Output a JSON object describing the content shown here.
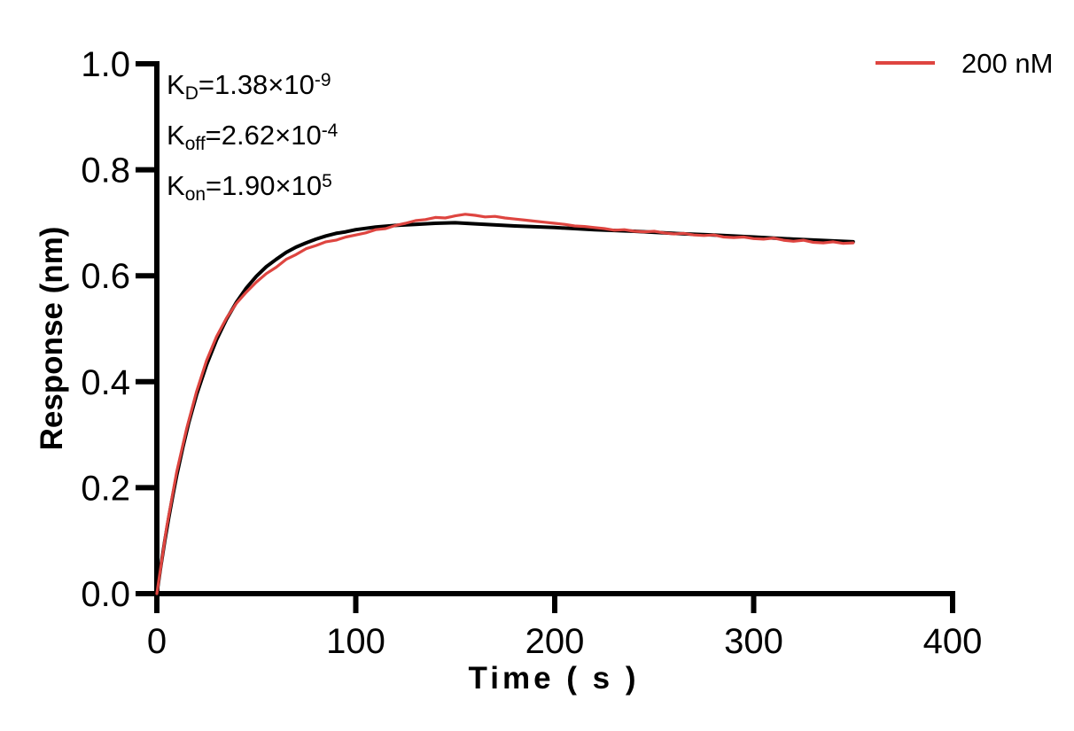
{
  "kinetics": [
    {
      "base": "K",
      "sub": "D",
      "body": "=1.38×10",
      "sup": "-9"
    },
    {
      "base": "K",
      "sub": "off",
      "body": "=2.62×10",
      "sup": "-4"
    },
    {
      "base": "K",
      "sub": "on",
      "body": "=1.90×10",
      "sup": "5"
    }
  ],
  "legend": {
    "position": "top-right",
    "items": [
      {
        "label": "200 nM",
        "color": "#de4540"
      }
    ]
  },
  "colors": {
    "axis": "#000000",
    "fit_line": "#000000",
    "data_line": "#de4540",
    "background": "#ffffff"
  },
  "chart_data": {
    "type": "line",
    "title": "",
    "xlabel": "Time ( s )",
    "ylabel": "Response (nm)",
    "xlim": [
      0,
      400
    ],
    "ylim": [
      0,
      1.0
    ],
    "xticks": [
      0,
      100,
      200,
      300,
      400
    ],
    "xtick_labels": [
      "0",
      "100",
      "200",
      "300",
      "400"
    ],
    "yticks": [
      0.0,
      0.2,
      0.4,
      0.6,
      0.8,
      1.0
    ],
    "ytick_labels": [
      "0.0",
      "0.2",
      "0.4",
      "0.6",
      "0.8",
      "1.0"
    ],
    "grid": false,
    "legend_position": "top-right",
    "series": [
      {
        "name": "fit",
        "color": "#000000",
        "stroke_width": 4,
        "x": [
          0,
          2,
          4,
          6,
          8,
          10,
          13,
          16,
          20,
          25,
          30,
          35,
          40,
          45,
          50,
          55,
          60,
          65,
          70,
          75,
          80,
          85,
          90,
          95,
          100,
          110,
          120,
          130,
          140,
          150,
          160,
          180,
          200,
          220,
          240,
          260,
          280,
          300,
          320,
          350
        ],
        "y": [
          0,
          0.052,
          0.1,
          0.144,
          0.185,
          0.223,
          0.275,
          0.322,
          0.376,
          0.432,
          0.479,
          0.518,
          0.55,
          0.577,
          0.599,
          0.617,
          0.631,
          0.644,
          0.654,
          0.662,
          0.669,
          0.675,
          0.68,
          0.683,
          0.687,
          0.692,
          0.695,
          0.697,
          0.699,
          0.7,
          0.698,
          0.694,
          0.691,
          0.687,
          0.684,
          0.68,
          0.677,
          0.673,
          0.669,
          0.664
        ]
      },
      {
        "name": "200 nM",
        "color": "#de4540",
        "stroke_width": 3.2,
        "x": [
          0,
          5,
          10,
          15,
          20,
          25,
          30,
          35,
          40,
          45,
          50,
          55,
          60,
          65,
          70,
          75,
          80,
          85,
          90,
          95,
          100,
          105,
          110,
          115,
          120,
          125,
          130,
          135,
          140,
          145,
          150,
          155,
          160,
          165,
          170,
          175,
          180,
          185,
          190,
          195,
          200,
          205,
          210,
          215,
          220,
          225,
          230,
          235,
          240,
          245,
          250,
          255,
          260,
          265,
          270,
          275,
          280,
          285,
          290,
          295,
          300,
          305,
          310,
          315,
          320,
          325,
          330,
          335,
          340,
          345,
          350
        ],
        "y": [
          0.0,
          0.127,
          0.23,
          0.312,
          0.382,
          0.44,
          0.485,
          0.52,
          0.548,
          0.569,
          0.588,
          0.604,
          0.616,
          0.631,
          0.64,
          0.651,
          0.657,
          0.664,
          0.667,
          0.673,
          0.677,
          0.681,
          0.687,
          0.689,
          0.695,
          0.699,
          0.704,
          0.706,
          0.71,
          0.709,
          0.713,
          0.716,
          0.714,
          0.711,
          0.712,
          0.709,
          0.707,
          0.705,
          0.703,
          0.701,
          0.699,
          0.697,
          0.694,
          0.693,
          0.691,
          0.689,
          0.686,
          0.687,
          0.684,
          0.683,
          0.684,
          0.681,
          0.679,
          0.68,
          0.677,
          0.676,
          0.677,
          0.673,
          0.672,
          0.673,
          0.67,
          0.669,
          0.671,
          0.667,
          0.665,
          0.667,
          0.663,
          0.662,
          0.664,
          0.661,
          0.662
        ]
      }
    ],
    "annotations": [
      "KD=1.38×10-9",
      "Koff=2.62×10-4",
      "Kon=1.90×105"
    ]
  }
}
